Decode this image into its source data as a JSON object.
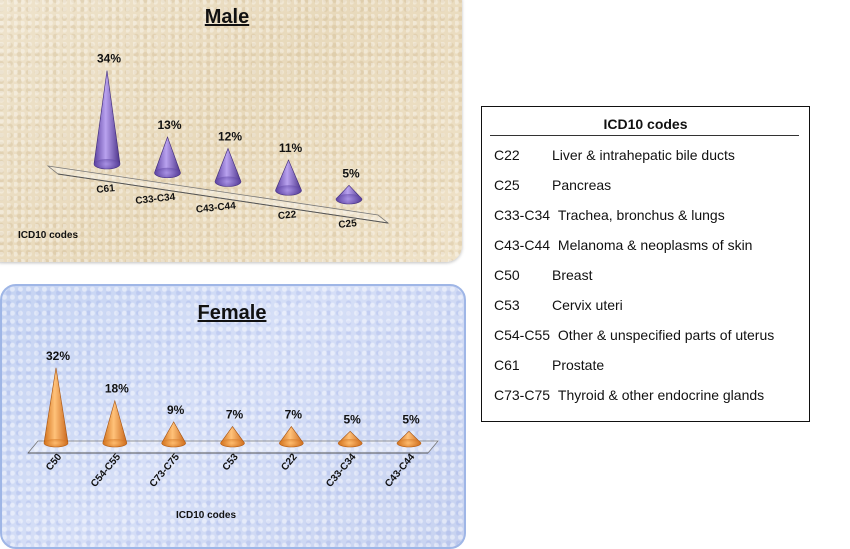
{
  "chart_data": [
    {
      "type": "bar",
      "shape": "3d-cone",
      "title": "Male",
      "xlabel": "ICD10 codes",
      "ylabel": "",
      "categories": [
        "C61",
        "C33-C34",
        "C43-C44",
        "C22",
        "C25"
      ],
      "values": [
        34,
        13,
        12,
        11,
        5
      ],
      "data_labels": [
        "34%",
        "13%",
        "12%",
        "11%",
        "5%"
      ],
      "color": "#8a6fc9",
      "grid": false,
      "legend": "none"
    },
    {
      "type": "bar",
      "shape": "3d-cone",
      "title": "Female",
      "xlabel": "ICD10 codes",
      "ylabel": "",
      "categories": [
        "C50",
        "C54-C55",
        "C73-C75",
        "C53",
        "C22",
        "C33-C34",
        "C43-C44"
      ],
      "values": [
        32,
        18,
        9,
        7,
        7,
        5,
        5
      ],
      "data_labels": [
        "32%",
        "18%",
        "9%",
        "7%",
        "7%",
        "5%",
        "5%"
      ],
      "color": "#f0962e",
      "grid": false,
      "legend": "none"
    }
  ],
  "legend": {
    "title": "ICD10 codes",
    "items": [
      {
        "code": "C22",
        "desc": "Liver & intrahepatic bile ducts"
      },
      {
        "code": "C25",
        "desc": "Pancreas"
      },
      {
        "code": "C33-C34",
        "desc": "Trachea, bronchus & lungs"
      },
      {
        "code": "C43-C44",
        "desc": "Melanoma & neoplasms of skin"
      },
      {
        "code": "C50",
        "desc": "Breast"
      },
      {
        "code": "C53",
        "desc": "Cervix uteri"
      },
      {
        "code": "C54-C55",
        "desc": "Other & unspecified parts of uterus"
      },
      {
        "code": "C61",
        "desc": "Prostate"
      },
      {
        "code": "C73-C75",
        "desc": "Thyroid & other endocrine glands"
      }
    ]
  }
}
